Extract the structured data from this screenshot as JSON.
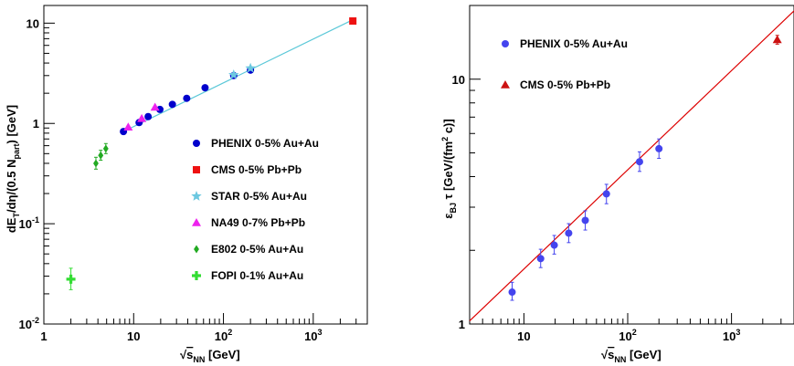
{
  "chart_data": [
    {
      "type": "scatter",
      "xscale": "log",
      "yscale": "log",
      "xlim": [
        1,
        4000
      ],
      "ylim": [
        0.01,
        15
      ],
      "x_ticks": [
        "1",
        "10",
        "10²",
        "10³"
      ],
      "y_ticks": [
        "10⁻²",
        "10⁻¹",
        "1",
        "10"
      ],
      "xlabel": "√s_NN [GeV]",
      "ylabel": "dE_T/dη/(0.5 N_part) [GeV]",
      "grid": false,
      "legend_position": "center-right",
      "fit_line": {
        "color": "#5bc8d8",
        "points": [
          [
            7.7,
            0.83
          ],
          [
            2760,
            10.8
          ]
        ]
      },
      "series": [
        {
          "name": "PHENIX 0-5% Au+Au",
          "marker": "circle",
          "color": "#0000cc",
          "points": [
            [
              7.7,
              0.83
            ],
            [
              11.5,
              1.02
            ],
            [
              14.5,
              1.17
            ],
            [
              19.6,
              1.38
            ],
            [
              27,
              1.55
            ],
            [
              39,
              1.78
            ],
            [
              62.4,
              2.27
            ],
            [
              130,
              3.0
            ],
            [
              200,
              3.4
            ]
          ]
        },
        {
          "name": "CMS 0-5% Pb+Pb",
          "marker": "square",
          "color": "#ee1111",
          "points": [
            [
              2760,
              10.5
            ]
          ]
        },
        {
          "name": "STAR 0-5% Au+Au",
          "marker": "star",
          "color": "#6cc8e0",
          "points": [
            [
              130,
              3.05
            ],
            [
              200,
              3.55
            ]
          ]
        },
        {
          "name": "NA49 0-7% Pb+Pb",
          "marker": "triangle",
          "color": "#ee22ee",
          "points": [
            [
              8.7,
              0.92
            ],
            [
              12.3,
              1.12
            ],
            [
              17.3,
              1.45
            ]
          ]
        },
        {
          "name": "E802 0-5% Au+Au",
          "marker": "diamond",
          "color": "#22aa22",
          "points": [
            [
              3.8,
              0.4,
              0.35,
              0.46
            ],
            [
              4.3,
              0.48,
              0.43,
              0.54
            ],
            [
              4.9,
              0.56,
              0.5,
              0.63
            ]
          ]
        },
        {
          "name": "FOPI 0-1% Au+Au",
          "marker": "cross",
          "color": "#33dd33",
          "points": [
            [
              2,
              0.028,
              0.022,
              0.036
            ]
          ]
        }
      ]
    },
    {
      "type": "scatter",
      "xscale": "log",
      "yscale": "log",
      "xlim": [
        3,
        4000
      ],
      "ylim": [
        1,
        20
      ],
      "x_ticks": [
        "10",
        "10²",
        "10³"
      ],
      "y_ticks": [
        "1",
        "10"
      ],
      "xlabel": "√s_NN [GeV]",
      "ylabel": "ε_BJ τ [GeV/(fm² c)]",
      "grid": false,
      "legend_position": "top-left",
      "fit_line": {
        "color": "#dd0000",
        "points": [
          [
            3,
            1.03
          ],
          [
            4000,
            19
          ]
        ]
      },
      "series": [
        {
          "name": "PHENIX 0-5% Au+Au",
          "marker": "circle",
          "color": "#4444ee",
          "points": [
            [
              7.7,
              1.35,
              1.25,
              1.48
            ],
            [
              14.5,
              1.85,
              1.7,
              2.02
            ],
            [
              19.6,
              2.1,
              1.93,
              2.3
            ],
            [
              27,
              2.35,
              2.15,
              2.57
            ],
            [
              39,
              2.65,
              2.42,
              2.9
            ],
            [
              62.4,
              3.4,
              3.1,
              3.72
            ],
            [
              130,
              4.6,
              4.2,
              5.05
            ],
            [
              200,
              5.2,
              4.75,
              5.7
            ]
          ]
        },
        {
          "name": "CMS 0-5% Pb+Pb",
          "marker": "triangle",
          "color": "#cc1111",
          "points": [
            [
              2760,
              14.5,
              13.9,
              15.1
            ]
          ]
        }
      ]
    }
  ]
}
